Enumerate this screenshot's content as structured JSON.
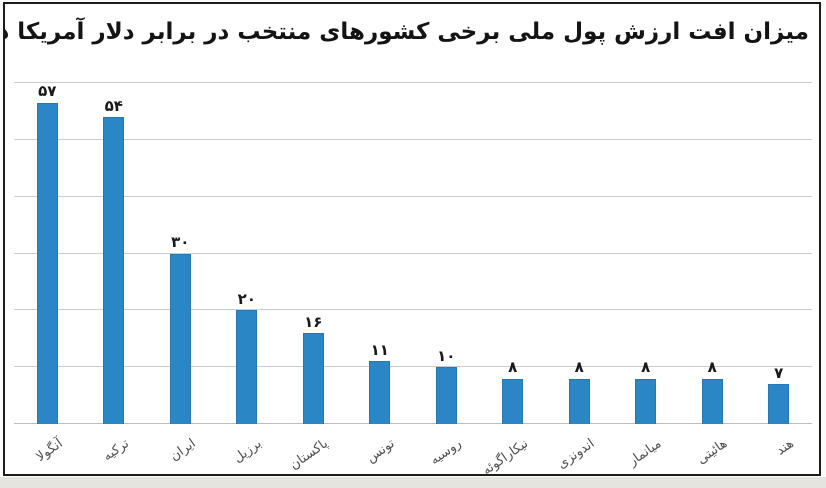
{
  "chart_data": {
    "type": "bar",
    "title": "میزان افت ارزش پول ملی برخی کشورهای منتخب در برابر دلار آمریکا در یک سال گذشته",
    "categories": [
      "آنگولا",
      "ترکیه",
      "ایران",
      "برزیل",
      "پاکستان",
      "تونس",
      "روسیه",
      "نیکاراگوئه",
      "اندونزی",
      "میانمار",
      "هائیتی",
      "هند"
    ],
    "values": [
      57,
      54,
      30,
      20,
      16,
      11,
      10,
      8,
      8,
      8,
      8,
      7
    ],
    "value_labels": [
      "۵۷",
      "۵۴",
      "۳۰",
      "۲۰",
      "۱۶",
      "۱۱",
      "۱۰",
      "۸",
      "۸",
      "۸",
      "۸",
      "۷"
    ],
    "xlabel": "",
    "ylabel": "",
    "ylim": [
      0,
      60
    ],
    "grid_step": 10,
    "grid": true,
    "legend": false,
    "direction": "rtl",
    "value_digit_style": "persian"
  },
  "colors": {
    "bar": "#2b86c5",
    "grid": "#cccccc",
    "baseline": "#bdbdbd",
    "title_text": "#141414",
    "value_text": "#1a1a1a",
    "category_text": "#4f4f4f",
    "frame_border": "#1c1c1c",
    "panel_bg": "#ffffff",
    "page_bg": "#fbfbfa",
    "bottom_strip": "#e6e4df"
  }
}
